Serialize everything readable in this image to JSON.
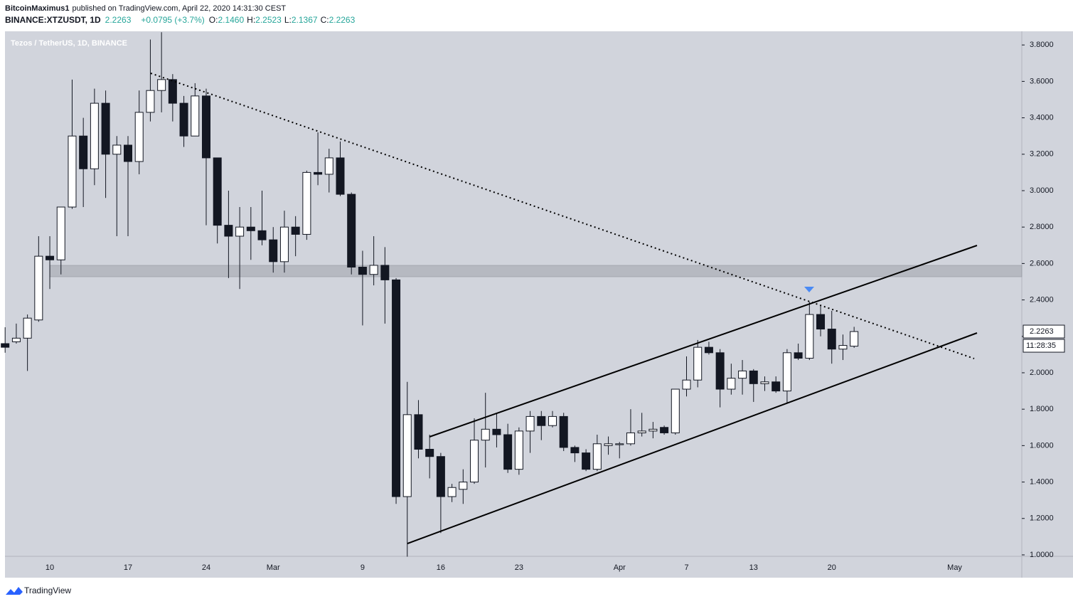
{
  "header": {
    "author": "BitcoinMaximus1",
    "published": "published on TradingView.com, April 22, 2020 14:31:30 CEST",
    "symbol": "BINANCE:XTZUSDT, 1D",
    "last": "2.2263",
    "change": "+0.0795 (+3.7%)",
    "o_label": "O:",
    "o": "2.1460",
    "h_label": "H:",
    "h": "2.2523",
    "l_label": "L:",
    "l": "2.1367",
    "c_label": "C:",
    "c": "2.2263"
  },
  "footer": {
    "brand": "TradingView"
  },
  "chart_data": {
    "type": "candlestick",
    "title": "Tezos / TetherUS, 1D, BINANCE",
    "categories": [
      null,
      null,
      null,
      null,
      "10",
      null,
      null,
      null,
      null,
      null,
      null,
      "17",
      null,
      null,
      null,
      null,
      null,
      null,
      "24",
      null,
      null,
      null,
      null,
      null,
      "Mar",
      null,
      null,
      null,
      null,
      null,
      null,
      null,
      "9",
      null,
      null,
      null,
      null,
      null,
      null,
      "16",
      null,
      null,
      null,
      null,
      null,
      null,
      "23",
      null,
      null,
      null,
      null,
      null,
      null,
      null,
      null,
      "Apr",
      null,
      null,
      null,
      null,
      null,
      "7",
      null,
      null,
      null,
      null,
      null,
      "13",
      null,
      null,
      null,
      null,
      null,
      null,
      "20",
      null,
      null,
      null,
      null,
      null,
      null,
      null,
      null,
      null,
      null,
      "May",
      null,
      null,
      null,
      null,
      null,
      null
    ],
    "open": [
      2.16,
      2.17,
      2.19,
      2.29,
      2.64,
      2.62,
      2.91,
      3.3,
      3.12,
      3.48,
      3.2,
      3.25,
      3.16,
      3.43,
      3.55,
      3.61,
      3.48,
      3.3,
      3.52,
      3.18,
      2.81,
      2.75,
      2.8,
      2.78,
      2.73,
      2.61,
      2.8,
      2.76,
      3.1,
      3.09,
      3.18,
      2.98,
      2.58,
      2.54,
      2.59,
      2.51,
      1.32,
      1.77,
      1.58,
      1.54,
      1.32,
      1.36,
      1.4,
      1.63,
      1.69,
      1.66,
      1.47,
      1.68,
      1.76,
      1.71,
      1.76,
      1.59,
      1.56,
      1.47,
      1.6,
      1.605,
      1.61,
      1.67,
      1.68,
      1.7,
      1.67,
      1.91,
      1.96,
      2.14,
      2.11,
      1.91,
      1.97,
      2.01,
      1.94,
      1.95,
      1.9,
      2.11,
      2.08,
      2.32,
      2.24,
      2.13,
      2.146,
      null,
      null,
      null,
      null,
      null,
      null,
      null,
      null,
      null,
      null,
      null,
      null,
      null,
      null,
      null
    ],
    "high": [
      2.25,
      2.27,
      2.32,
      2.75,
      2.75,
      2.91,
      3.61,
      3.4,
      3.56,
      3.55,
      3.3,
      3.3,
      3.55,
      3.83,
      3.87,
      3.64,
      3.52,
      3.59,
      3.56,
      3.18,
      3.0,
      2.91,
      2.91,
      3.0,
      2.8,
      2.89,
      2.86,
      3.11,
      3.32,
      3.23,
      3.27,
      2.99,
      2.67,
      2.75,
      2.69,
      2.52,
      1.95,
      1.85,
      1.66,
      1.56,
      1.39,
      1.47,
      1.75,
      1.89,
      1.78,
      1.72,
      1.7,
      1.79,
      1.79,
      1.79,
      1.78,
      1.6,
      1.58,
      1.66,
      1.65,
      1.62,
      1.8,
      1.78,
      1.73,
      1.71,
      1.91,
      2.09,
      2.18,
      2.17,
      2.13,
      2.05,
      2.07,
      2.02,
      1.98,
      1.98,
      2.13,
      2.16,
      2.39,
      2.37,
      2.34,
      2.21,
      2.2523,
      null,
      null,
      null,
      null,
      null,
      null,
      null,
      null,
      null,
      null,
      null,
      null,
      null,
      null,
      null
    ],
    "low": [
      2.11,
      2.16,
      2.01,
      2.28,
      2.46,
      2.54,
      2.9,
      2.91,
      3.03,
      2.96,
      2.75,
      2.75,
      3.09,
      3.38,
      3.43,
      3.38,
      3.24,
      3.3,
      2.81,
      2.71,
      2.52,
      2.46,
      2.62,
      2.7,
      2.55,
      2.55,
      2.64,
      2.73,
      3.03,
      2.99,
      2.97,
      2.54,
      2.26,
      2.48,
      2.27,
      1.28,
      0.99,
      1.53,
      1.42,
      1.12,
      1.29,
      1.28,
      1.39,
      1.48,
      1.59,
      1.45,
      1.44,
      1.56,
      1.63,
      1.7,
      1.57,
      1.51,
      1.46,
      1.46,
      1.55,
      1.53,
      1.6,
      1.65,
      1.64,
      1.66,
      1.66,
      1.87,
      1.92,
      2.1,
      1.81,
      1.88,
      1.88,
      1.84,
      1.9,
      1.89,
      1.83,
      2.07,
      2.07,
      2.2,
      2.05,
      2.07,
      2.1367,
      null,
      null,
      null,
      null,
      null,
      null,
      null,
      null,
      null,
      null,
      null,
      null,
      null,
      null,
      null
    ],
    "close": [
      2.14,
      2.19,
      2.3,
      2.64,
      2.62,
      2.91,
      3.3,
      3.12,
      3.48,
      3.2,
      3.25,
      3.16,
      3.43,
      3.55,
      3.61,
      3.48,
      3.3,
      3.52,
      3.18,
      2.81,
      2.75,
      2.8,
      2.78,
      2.73,
      2.61,
      2.8,
      2.76,
      3.1,
      3.09,
      3.18,
      2.98,
      2.58,
      2.54,
      2.59,
      2.51,
      1.32,
      1.77,
      1.58,
      1.54,
      1.32,
      1.37,
      1.4,
      1.63,
      1.69,
      1.66,
      1.47,
      1.68,
      1.76,
      1.71,
      1.76,
      1.59,
      1.56,
      1.47,
      1.61,
      1.61,
      1.61,
      1.67,
      1.68,
      1.69,
      1.67,
      1.91,
      1.96,
      2.14,
      2.11,
      1.91,
      1.97,
      2.01,
      1.94,
      1.95,
      1.9,
      2.11,
      2.08,
      2.32,
      2.24,
      2.13,
      2.15,
      2.2263,
      null,
      null,
      null,
      null,
      null,
      null,
      null,
      null,
      null,
      null,
      null,
      null,
      null,
      null,
      null
    ],
    "up_color": "#ffffff",
    "down_color": "#131722",
    "ylim": [
      0.992,
      3.875
    ],
    "yticks": [
      {
        "value": 1.0,
        "label": "1.0000"
      },
      {
        "value": 1.2,
        "label": "1.2000"
      },
      {
        "value": 1.4,
        "label": "1.4000"
      },
      {
        "value": 1.6,
        "label": "1.6000"
      },
      {
        "value": 1.8,
        "label": "1.8000"
      },
      {
        "value": 2.0,
        "label": "2.0000"
      },
      {
        "value": 2.2,
        "label": "2.2000"
      },
      {
        "value": 2.4,
        "label": "2.4000"
      },
      {
        "value": 2.6,
        "label": "2.6000"
      },
      {
        "value": 2.8,
        "label": "2.8000"
      },
      {
        "value": 3.0,
        "label": "3.0000"
      },
      {
        "value": 3.2,
        "label": "3.2000"
      },
      {
        "value": 3.4,
        "label": "3.4000"
      },
      {
        "value": 3.6,
        "label": "3.6000"
      },
      {
        "value": 3.8,
        "label": "3.8000"
      }
    ],
    "grid": false,
    "countdown": "11:28:35"
  }
}
